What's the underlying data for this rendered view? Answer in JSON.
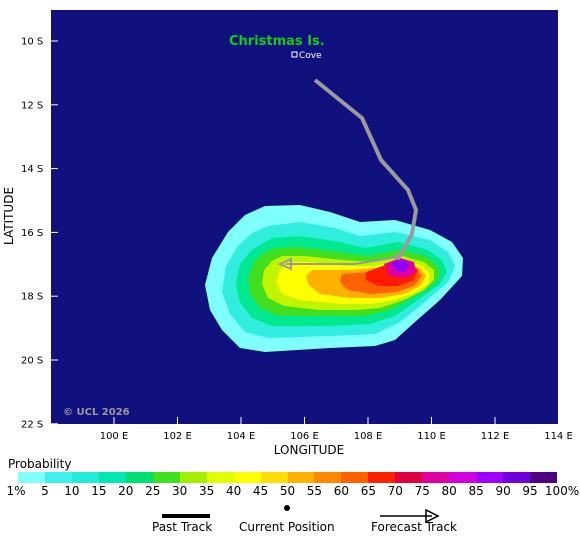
{
  "map": {
    "place_name": "Christmas Is.",
    "place_sub": "Cove",
    "copyright": "© UCL 2026",
    "x_title": "LONGITUDE",
    "y_title": "LATITUDE",
    "lat_ticks": [
      "10 S",
      "12 S",
      "14 S",
      "16 S",
      "18 S",
      "20 S",
      "22 S"
    ],
    "lon_ticks": [
      "100 E",
      "102 E",
      "104 E",
      "106 E",
      "108 E",
      "110 E",
      "112 E",
      "114 E"
    ],
    "colors": {
      "ocean": "#10107e",
      "track": "#9a9a9a",
      "place_title": "#11cc11",
      "copyright": "#9a9a9a"
    }
  },
  "legend": {
    "title": "Probability",
    "labels": [
      "1%",
      "5",
      "10",
      "15",
      "20",
      "25",
      "30",
      "35",
      "40",
      "45",
      "50",
      "55",
      "60",
      "65",
      "70",
      "75",
      "80",
      "85",
      "90",
      "95",
      "100%"
    ],
    "colors": [
      "#7fffff",
      "#40f0f0",
      "#20ecd8",
      "#00e8b0",
      "#00e070",
      "#40e020",
      "#a0f000",
      "#e0ff00",
      "#ffff00",
      "#ffdd00",
      "#ffb000",
      "#ff8800",
      "#ff6000",
      "#ff2000",
      "#e00040",
      "#e000a0",
      "#d000e0",
      "#a000ff",
      "#7000e0",
      "#500080"
    ],
    "key_past": "Past Track",
    "key_current": "Current Position",
    "key_forecast": "Forecast Track"
  }
}
